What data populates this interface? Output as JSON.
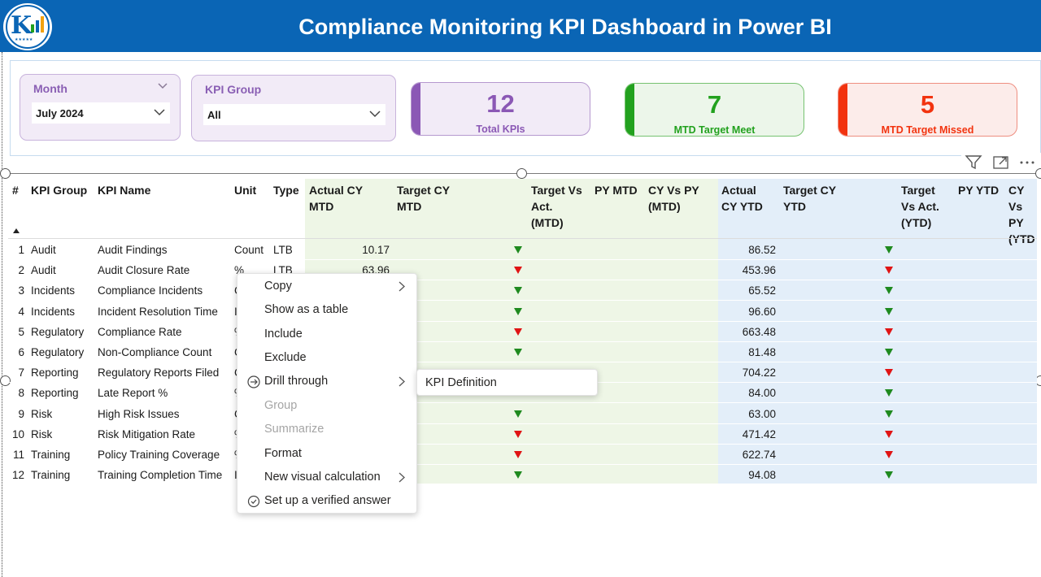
{
  "header": {
    "title": "Compliance Monitoring KPI Dashboard in Power BI",
    "bg_color": "#0a65b5"
  },
  "logo": {
    "icon": "company-logo"
  },
  "slicers": {
    "month": {
      "label": "Month",
      "value": "July 2024"
    },
    "kpi_group": {
      "label": "KPI Group",
      "value": "All"
    }
  },
  "cards": [
    {
      "value": "12",
      "label": "Total KPIs",
      "color": "#8b58b5"
    },
    {
      "value": "7",
      "label": "MTD Target Meet",
      "color": "#22a11e"
    },
    {
      "value": "5",
      "label": "MTD Target Missed",
      "color": "#f2330f"
    }
  ],
  "visual_header_icons": [
    "filter-icon",
    "focus-mode-icon",
    "more-options-icon"
  ],
  "table": {
    "columns": [
      "#",
      "KPI Group",
      "KPI Name",
      "Unit",
      "Type",
      "Actual CY MTD",
      "Target CY MTD",
      "Target Vs Act. (MTD)",
      "PY MTD",
      "CY Vs PY (MTD)",
      "Actual CY YTD",
      "Target CY YTD",
      "Target Vs Act. (YTD)",
      "PY YTD",
      "CY Vs PY (YTD)"
    ],
    "columns_display": {
      "num": "#",
      "group": "KPI Group",
      "name": "KPI Name",
      "unit": "Unit",
      "type": "Type",
      "act_mtd_1": "Actual CY",
      "act_mtd_2": "MTD",
      "tgt_mtd_1": "Target CY",
      "tgt_mtd_2": "MTD",
      "tva_mtd_1": "Target Vs",
      "tva_mtd_2": "Act.",
      "tva_mtd_3": "(MTD)",
      "py_mtd": "PY MTD",
      "cvp_mtd_1": "CY Vs PY",
      "cvp_mtd_2": "(MTD)",
      "act_ytd_1": "Actual",
      "act_ytd_2": "CY YTD",
      "tgt_ytd_1": "Target CY",
      "tgt_ytd_2": "YTD",
      "tva_ytd_1": "Target",
      "tva_ytd_2": "Vs Act.",
      "tva_ytd_3": "(YTD)",
      "py_ytd": "PY YTD",
      "cvp_ytd_1": "CY Vs",
      "cvp_ytd_2": "PY",
      "cvp_ytd_3": "(YTD"
    },
    "rows": [
      {
        "num": "1",
        "group": "Audit",
        "name": "Audit Findings",
        "unit": "Count",
        "type": "LTB",
        "actual_mtd": "10.17",
        "mtd_status": "met",
        "actual_ytd": "86.52",
        "ytd_status": "met"
      },
      {
        "num": "2",
        "group": "Audit",
        "name": "Audit Closure Rate",
        "unit": "%",
        "type": "LTB",
        "actual_mtd": "63.96",
        "mtd_status": "missed",
        "actual_ytd": "453.96",
        "ytd_status": "missed"
      },
      {
        "num": "3",
        "group": "Incidents",
        "name": "Compliance Incidents",
        "unit": "C",
        "type": "",
        "actual_mtd": "",
        "mtd_status": "met",
        "actual_ytd": "65.52",
        "ytd_status": "met"
      },
      {
        "num": "4",
        "group": "Incidents",
        "name": "Incident Resolution Time",
        "unit": "I",
        "type": "",
        "actual_mtd": "",
        "mtd_status": "met",
        "actual_ytd": "96.60",
        "ytd_status": "met"
      },
      {
        "num": "5",
        "group": "Regulatory",
        "name": "Compliance Rate",
        "unit": "%",
        "type": "",
        "actual_mtd": "",
        "mtd_status": "missed",
        "actual_ytd": "663.48",
        "ytd_status": "missed"
      },
      {
        "num": "6",
        "group": "Regulatory",
        "name": "Non-Compliance Count",
        "unit": "C",
        "type": "",
        "actual_mtd": "",
        "mtd_status": "met",
        "actual_ytd": "81.48",
        "ytd_status": "met"
      },
      {
        "num": "7",
        "group": "Reporting",
        "name": "Regulatory Reports Filed",
        "unit": "C",
        "type": "",
        "actual_mtd": "",
        "mtd_status": "",
        "actual_ytd": "704.22",
        "ytd_status": "missed"
      },
      {
        "num": "8",
        "group": "Reporting",
        "name": "Late Report %",
        "unit": "%",
        "type": "",
        "actual_mtd": "",
        "mtd_status": "",
        "actual_ytd": "84.00",
        "ytd_status": "met"
      },
      {
        "num": "9",
        "group": "Risk",
        "name": "High Risk Issues",
        "unit": "C",
        "type": "",
        "actual_mtd": "",
        "mtd_status": "met",
        "actual_ytd": "63.00",
        "ytd_status": "met"
      },
      {
        "num": "10",
        "group": "Risk",
        "name": "Risk Mitigation Rate",
        "unit": "%",
        "type": "",
        "actual_mtd": "",
        "mtd_status": "missed",
        "actual_ytd": "471.42",
        "ytd_status": "missed"
      },
      {
        "num": "11",
        "group": "Training",
        "name": "Policy Training Coverage",
        "unit": "%",
        "type": "",
        "actual_mtd": "",
        "mtd_status": "missed",
        "actual_ytd": "622.74",
        "ytd_status": "missed"
      },
      {
        "num": "12",
        "group": "Training",
        "name": "Training Completion Time",
        "unit": "I",
        "type": "",
        "actual_mtd": "",
        "mtd_status": "met",
        "actual_ytd": "94.08",
        "ytd_status": "met"
      }
    ],
    "status_colors": {
      "met": "#1f8a1f",
      "missed": "#e01414"
    },
    "section_colors": {
      "mtd": "#eef6e6",
      "ytd": "#e3eef9"
    }
  },
  "context_menu": {
    "items": [
      {
        "label": "Copy",
        "has_submenu": true,
        "disabled": false,
        "icon": ""
      },
      {
        "label": "Show as a table",
        "has_submenu": false,
        "disabled": false,
        "icon": ""
      },
      {
        "label": "Include",
        "has_submenu": false,
        "disabled": false,
        "icon": ""
      },
      {
        "label": "Exclude",
        "has_submenu": false,
        "disabled": false,
        "icon": ""
      },
      {
        "label": "Drill through",
        "has_submenu": true,
        "disabled": false,
        "icon": "drill-through-icon"
      },
      {
        "label": "Group",
        "has_submenu": false,
        "disabled": true,
        "icon": ""
      },
      {
        "label": "Summarize",
        "has_submenu": false,
        "disabled": true,
        "icon": ""
      },
      {
        "label": "Format",
        "has_submenu": false,
        "disabled": false,
        "icon": ""
      },
      {
        "label": "New visual calculation",
        "has_submenu": true,
        "disabled": false,
        "icon": ""
      },
      {
        "label": "Set up a verified answer",
        "has_submenu": false,
        "disabled": false,
        "icon": "verified-answer-icon"
      }
    ],
    "submenu": {
      "label": "KPI Definition"
    }
  }
}
